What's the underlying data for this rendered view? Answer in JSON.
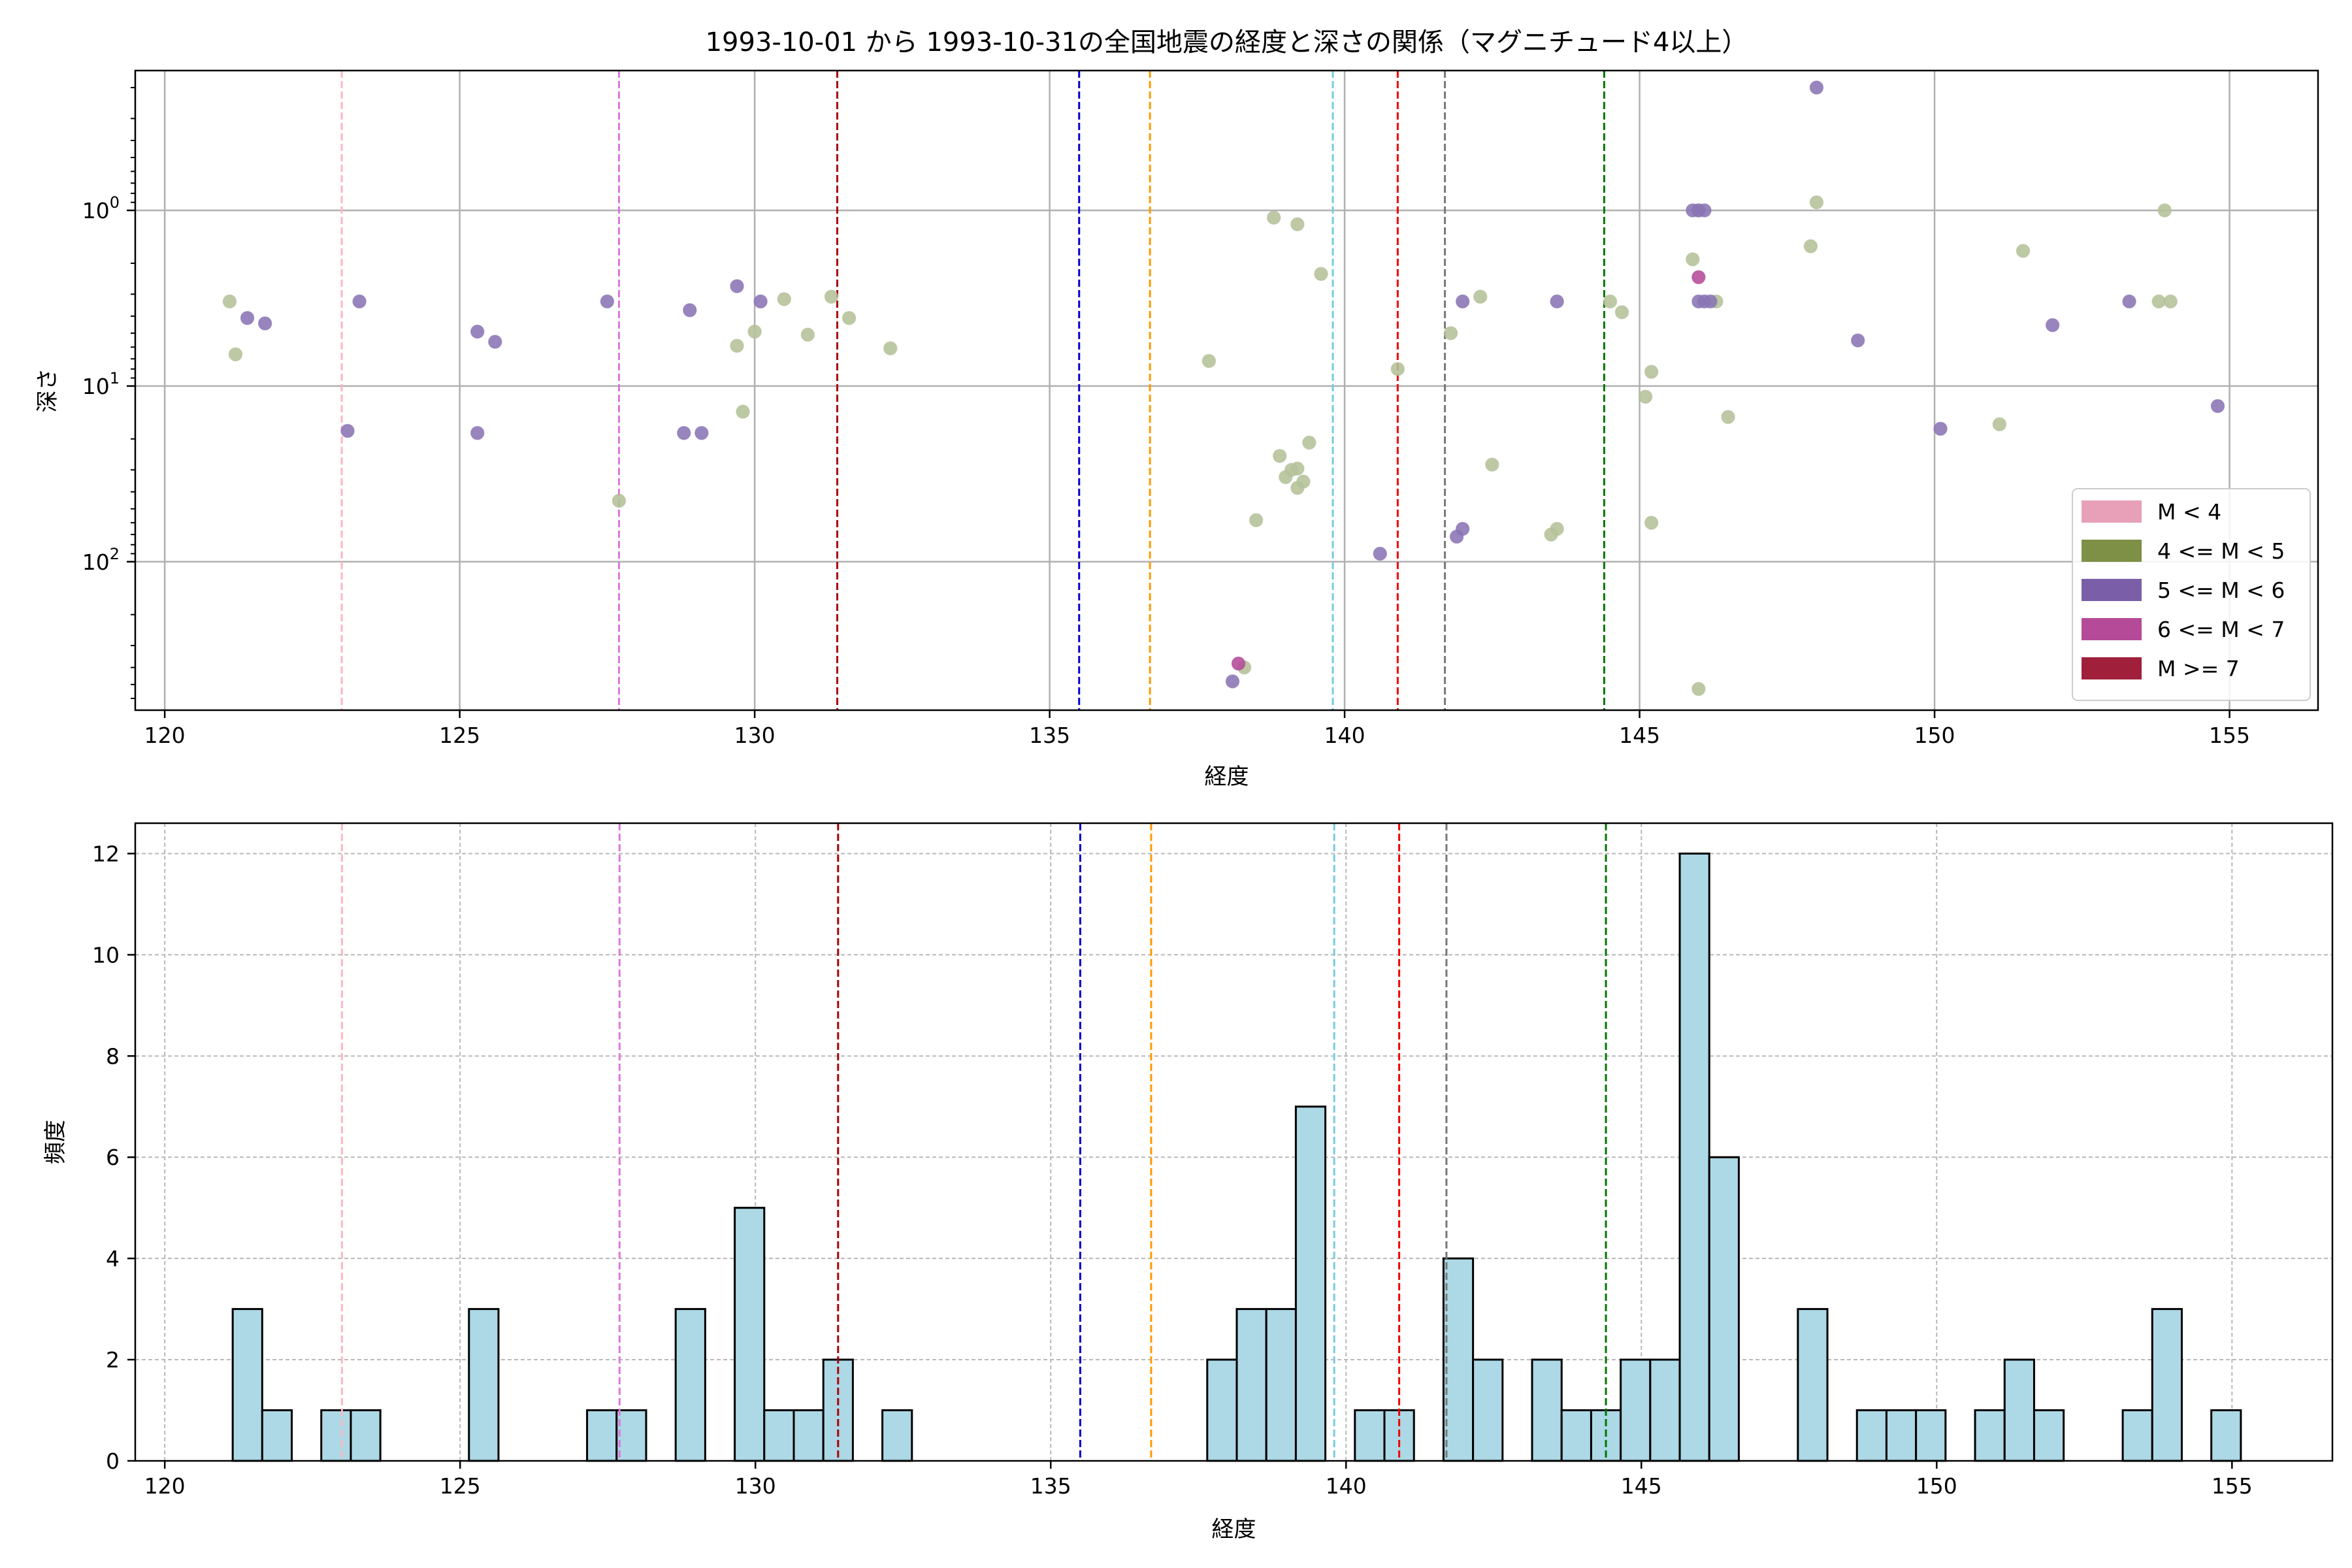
{
  "chart_data": [
    {
      "type": "scatter",
      "title": "1993-10-01 から 1993-10-31の全国地震の経度と深さの関係（マグニチュード4以上）",
      "xlabel": "経度",
      "ylabel": "深さ",
      "xlim": [
        119.5,
        156.5
      ],
      "ylim": [
        700,
        0.16
      ],
      "y_scale": "log",
      "y_inverted": true,
      "x_ticks": [
        "120",
        "125",
        "130",
        "135",
        "140",
        "145",
        "150",
        "155"
      ],
      "x_tick_values": [
        120,
        125,
        130,
        135,
        140,
        145,
        150,
        155
      ],
      "y_ticks": [
        {
          "value": 1,
          "base": "10",
          "exp": "0"
        },
        {
          "value": 10,
          "base": "10",
          "exp": "1"
        },
        {
          "value": 100,
          "base": "10",
          "exp": "2"
        }
      ],
      "grid": true,
      "legend_position": "lower-right",
      "legend": [
        {
          "label": "M < 4",
          "color": "#e8a0b8"
        },
        {
          "label": "4 <= M < 5",
          "color": "#7e9045"
        },
        {
          "label": "5 <= M < 6",
          "color": "#7a5fa8"
        },
        {
          "label": "6 <= M < 7",
          "color": "#b44a98"
        },
        {
          "label": "M >= 7",
          "color": "#a0203c"
        }
      ],
      "vlines": [
        {
          "x": 123.0,
          "color": "#ffb6c1"
        },
        {
          "x": 127.7,
          "color": "#dd77dd"
        },
        {
          "x": 131.4,
          "color": "#aa0000"
        },
        {
          "x": 135.5,
          "color": "#0000cc"
        },
        {
          "x": 136.7,
          "color": "#ff9900"
        },
        {
          "x": 139.8,
          "color": "#77ccdd"
        },
        {
          "x": 140.9,
          "color": "#ee0000"
        },
        {
          "x": 141.7,
          "color": "#777777"
        },
        {
          "x": 144.4,
          "color": "#007700"
        }
      ],
      "series": [
        {
          "name": "4 <= M < 5",
          "color": "#b4c098",
          "points": [
            [
              121.1,
              3.3
            ],
            [
              121.2,
              6.6
            ],
            [
              130.5,
              3.2
            ],
            [
              130.9,
              5.1
            ],
            [
              131.3,
              3.1
            ],
            [
              131.6,
              4.1
            ],
            [
              132.3,
              6.1
            ],
            [
              129.7,
              5.9
            ],
            [
              130.0,
              4.9
            ],
            [
              129.8,
              14.0
            ],
            [
              127.7,
              45.0
            ],
            [
              137.7,
              7.2
            ],
            [
              138.5,
              58.0
            ],
            [
              138.8,
              1.1
            ],
            [
              139.2,
              1.2
            ],
            [
              139.6,
              2.3
            ],
            [
              138.9,
              25.0
            ],
            [
              139.0,
              33.0
            ],
            [
              139.1,
              30.0
            ],
            [
              139.2,
              29.5
            ],
            [
              139.3,
              35.0
            ],
            [
              139.4,
              21.0
            ],
            [
              139.2,
              38.0
            ],
            [
              140.9,
              8.0
            ],
            [
              141.8,
              5.0
            ],
            [
              142.3,
              3.1
            ],
            [
              142.5,
              28.0
            ],
            [
              143.5,
              70.0
            ],
            [
              143.6,
              65.0
            ],
            [
              144.5,
              3.3
            ],
            [
              144.7,
              3.8
            ],
            [
              145.1,
              11.5
            ],
            [
              145.2,
              8.3
            ],
            [
              145.2,
              60.0
            ],
            [
              145.9,
              1.9
            ],
            [
              146.0,
              1.0
            ],
            [
              146.3,
              3.3
            ],
            [
              146.5,
              15.0
            ],
            [
              148.0,
              0.9
            ],
            [
              147.9,
              1.6
            ],
            [
              151.1,
              16.5
            ],
            [
              151.5,
              1.7
            ],
            [
              153.8,
              3.3
            ],
            [
              153.9,
              1.0
            ],
            [
              154.0,
              3.3
            ],
            [
              138.3,
              400.0
            ],
            [
              146.0,
              530.0
            ]
          ]
        },
        {
          "name": "5 <= M < 6",
          "color": "#8a74b4",
          "points": [
            [
              121.4,
              4.1
            ],
            [
              121.7,
              4.4
            ],
            [
              123.1,
              18.0
            ],
            [
              123.3,
              3.3
            ],
            [
              125.3,
              4.9
            ],
            [
              125.6,
              5.6
            ],
            [
              125.3,
              18.5
            ],
            [
              127.5,
              3.3
            ],
            [
              128.9,
              3.7
            ],
            [
              129.7,
              2.7
            ],
            [
              130.1,
              3.3
            ],
            [
              128.8,
              18.5
            ],
            [
              129.1,
              18.5
            ],
            [
              140.6,
              90.0
            ],
            [
              142.0,
              3.3
            ],
            [
              141.9,
              72.0
            ],
            [
              142.0,
              65.0
            ],
            [
              143.6,
              3.3
            ],
            [
              145.9,
              1.0
            ],
            [
              146.0,
              1.0
            ],
            [
              146.1,
              1.0
            ],
            [
              146.0,
              3.3
            ],
            [
              146.1,
              3.3
            ],
            [
              146.2,
              3.3
            ],
            [
              148.0,
              0.2
            ],
            [
              148.7,
              5.5
            ],
            [
              150.1,
              17.5
            ],
            [
              152.0,
              4.5
            ],
            [
              153.3,
              3.3
            ],
            [
              154.8,
              13.0
            ],
            [
              138.1,
              480.0
            ]
          ]
        },
        {
          "name": "6 <= M < 7",
          "color": "#b44a98",
          "points": [
            [
              146.0,
              2.4
            ],
            [
              138.2,
              380.0
            ]
          ]
        }
      ]
    },
    {
      "type": "bar",
      "title": "",
      "xlabel": "経度",
      "ylabel": "頻度",
      "xlim": [
        119.5,
        156.7
      ],
      "ylim": [
        0,
        12.6
      ],
      "x_ticks": [
        "120",
        "125",
        "130",
        "135",
        "140",
        "145",
        "150",
        "155"
      ],
      "x_tick_values": [
        120,
        125,
        130,
        135,
        140,
        145,
        150,
        155
      ],
      "y_ticks": [
        "0",
        "2",
        "4",
        "6",
        "8",
        "10",
        "12"
      ],
      "y_tick_values": [
        0,
        2,
        4,
        6,
        8,
        10,
        12
      ],
      "grid": true,
      "bar_color": "#add8e6",
      "vlines": [
        {
          "x": 123.0,
          "color": "#ffb6c1"
        },
        {
          "x": 127.7,
          "color": "#dd77dd"
        },
        {
          "x": 131.4,
          "color": "#aa0000"
        },
        {
          "x": 135.5,
          "color": "#0000cc"
        },
        {
          "x": 136.7,
          "color": "#ff9900"
        },
        {
          "x": 139.8,
          "color": "#77ccdd"
        },
        {
          "x": 140.9,
          "color": "#ee0000"
        },
        {
          "x": 141.7,
          "color": "#777777"
        },
        {
          "x": 144.4,
          "color": "#007700"
        }
      ],
      "bins": [
        [
          121.15,
          121.65,
          3
        ],
        [
          121.65,
          122.15,
          1
        ],
        [
          122.65,
          123.15,
          1
        ],
        [
          123.15,
          123.65,
          1
        ],
        [
          125.15,
          125.65,
          3
        ],
        [
          127.15,
          127.65,
          1
        ],
        [
          127.65,
          128.15,
          1
        ],
        [
          128.65,
          129.15,
          3
        ],
        [
          129.65,
          130.15,
          5
        ],
        [
          130.15,
          130.65,
          1
        ],
        [
          130.65,
          131.15,
          1
        ],
        [
          131.15,
          131.65,
          2
        ],
        [
          132.15,
          132.65,
          1
        ],
        [
          137.65,
          138.15,
          2
        ],
        [
          138.15,
          138.65,
          3
        ],
        [
          138.65,
          139.15,
          3
        ],
        [
          139.15,
          139.65,
          7
        ],
        [
          140.15,
          140.65,
          1
        ],
        [
          140.65,
          141.15,
          1
        ],
        [
          141.65,
          142.15,
          4
        ],
        [
          142.15,
          142.65,
          2
        ],
        [
          143.15,
          143.65,
          2
        ],
        [
          143.65,
          144.15,
          1
        ],
        [
          144.15,
          144.65,
          1
        ],
        [
          144.65,
          145.15,
          2
        ],
        [
          145.15,
          145.65,
          2
        ],
        [
          145.65,
          146.15,
          12
        ],
        [
          146.15,
          146.65,
          6
        ],
        [
          147.65,
          148.15,
          3
        ],
        [
          148.65,
          149.15,
          1
        ],
        [
          149.15,
          149.65,
          1
        ],
        [
          149.65,
          150.15,
          1
        ],
        [
          150.65,
          151.15,
          1
        ],
        [
          151.15,
          151.65,
          2
        ],
        [
          151.65,
          152.15,
          1
        ],
        [
          153.15,
          153.65,
          1
        ],
        [
          153.65,
          154.15,
          3
        ],
        [
          154.65,
          155.15,
          1
        ]
      ]
    }
  ]
}
